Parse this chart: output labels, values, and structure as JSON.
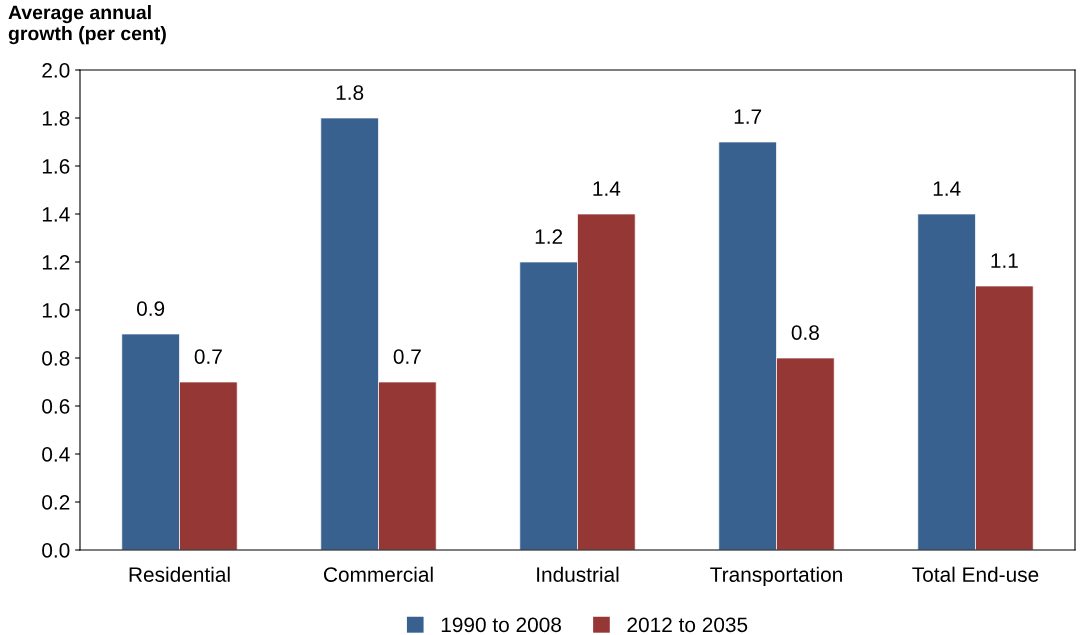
{
  "chart_data": {
    "type": "bar",
    "ylabel": "Average annual\ngrowth (per cent)",
    "categories": [
      "Residential",
      "Commercial",
      "Industrial",
      "Transportation",
      "Total End-use"
    ],
    "series": [
      {
        "name": "1990 to 2008",
        "color": "#386190",
        "values": [
          0.9,
          1.8,
          1.2,
          1.7,
          1.4
        ]
      },
      {
        "name": "2012 to 2035",
        "color": "#953735",
        "values": [
          0.7,
          0.7,
          1.4,
          0.8,
          1.1
        ]
      }
    ],
    "ylim": [
      0,
      2.0
    ],
    "yticks": [
      {
        "value": 0,
        "label": "0.0"
      },
      {
        "value": 0.2,
        "label": "0.2"
      },
      {
        "value": 0.4,
        "label": "0.4"
      },
      {
        "value": 0.6,
        "label": "0.6"
      },
      {
        "value": 0.8,
        "label": "0.8"
      },
      {
        "value": 1.0,
        "label": "1.0"
      },
      {
        "value": 1.2,
        "label": "1.2"
      },
      {
        "value": 1.4,
        "label": "1.4"
      },
      {
        "value": 1.6,
        "label": "1.6"
      },
      {
        "value": 1.8,
        "label": "1.8"
      },
      {
        "value": 2.0,
        "label": "2.0"
      }
    ],
    "data_labels": true,
    "grid": false,
    "legend": "bottom"
  }
}
